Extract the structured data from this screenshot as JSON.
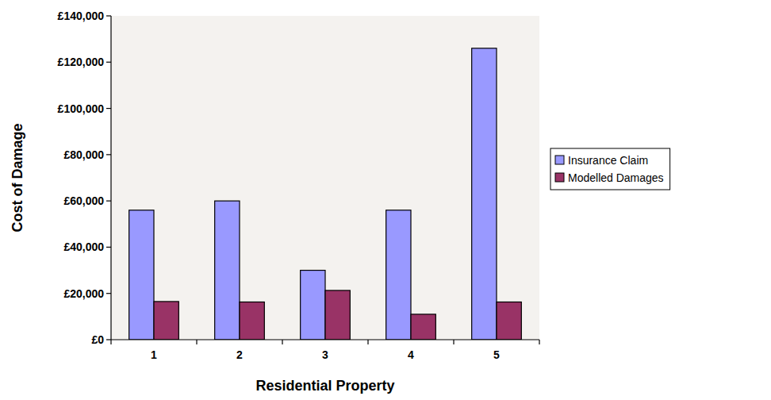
{
  "chart_data": {
    "type": "bar",
    "x_label": "Residential Property",
    "y_label": "Cost of Damage",
    "categories": [
      "1",
      "2",
      "3",
      "4",
      "5"
    ],
    "series": [
      {
        "name": "Insurance Claim",
        "color": "#9999ff",
        "values": [
          56000,
          60000,
          30000,
          56000,
          126000
        ]
      },
      {
        "name": "Modelled Damages",
        "color": "#993366",
        "values": [
          16500,
          16300,
          21300,
          11000,
          16300
        ]
      }
    ],
    "ylim": [
      0,
      140000
    ],
    "yticks": [
      {
        "value": 0,
        "label": "£0"
      },
      {
        "value": 20000,
        "label": "£20,000"
      },
      {
        "value": 40000,
        "label": "£40,000"
      },
      {
        "value": 60000,
        "label": "£60,000"
      },
      {
        "value": 80000,
        "label": "£80,000"
      },
      {
        "value": 100000,
        "label": "£100,000"
      },
      {
        "value": 120000,
        "label": "£120,000"
      },
      {
        "value": 140000,
        "label": "£140,000"
      }
    ],
    "grid": false,
    "legend": "right"
  }
}
